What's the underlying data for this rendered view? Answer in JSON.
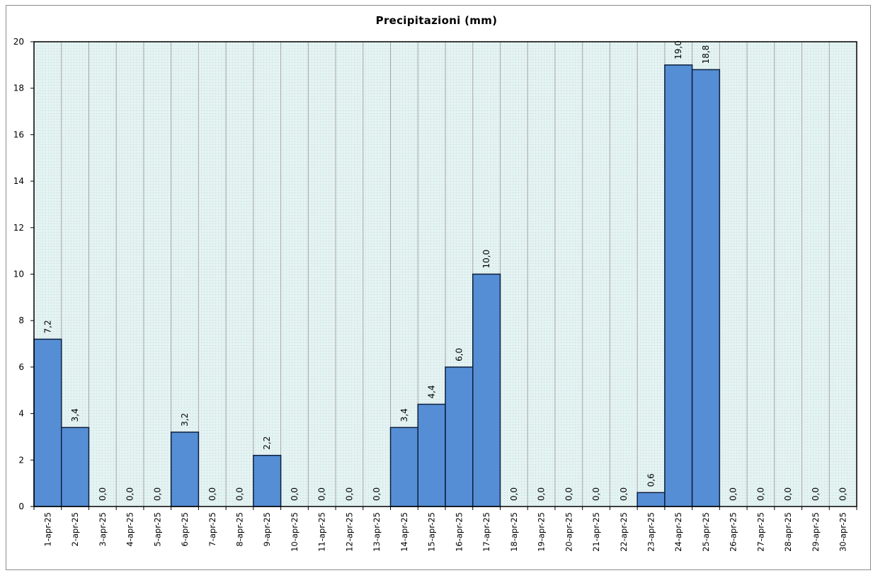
{
  "chart_data": {
    "type": "bar",
    "title": "Precipitazioni  (mm)",
    "xlabel": "",
    "ylabel": "",
    "ylim": [
      0,
      20
    ],
    "yticks": [
      "0",
      "2",
      "4",
      "6",
      "8",
      "10",
      "12",
      "14",
      "16",
      "18",
      "20"
    ],
    "grid": "vertical",
    "legend": "none",
    "categories": [
      "1-apr-25",
      "2-apr-25",
      "3-apr-25",
      "4-apr-25",
      "5-apr-25",
      "6-apr-25",
      "7-apr-25",
      "8-apr-25",
      "9-apr-25",
      "10-apr-25",
      "11-apr-25",
      "12-apr-25",
      "13-apr-25",
      "14-apr-25",
      "15-apr-25",
      "16-apr-25",
      "17-apr-25",
      "18-apr-25",
      "19-apr-25",
      "20-apr-25",
      "21-apr-25",
      "22-apr-25",
      "23-apr-25",
      "24-apr-25",
      "25-apr-25",
      "26-apr-25",
      "27-apr-25",
      "28-apr-25",
      "29-apr-25",
      "30-apr-25"
    ],
    "values": [
      7.2,
      3.4,
      0.0,
      0.0,
      0.0,
      3.2,
      0.0,
      0.0,
      2.2,
      0.0,
      0.0,
      0.0,
      0.0,
      3.4,
      4.4,
      6.0,
      10.0,
      0.0,
      0.0,
      0.0,
      0.0,
      0.0,
      0.6,
      19.0,
      18.8,
      0.0,
      0.0,
      0.0,
      0.0,
      0.0
    ],
    "data_labels": [
      "7,2",
      "3,4",
      "0,0",
      "0,0",
      "0,0",
      "3,2",
      "0,0",
      "0,0",
      "2,2",
      "0,0",
      "0,0",
      "0,0",
      "0,0",
      "3,4",
      "4,4",
      "6,0",
      "10,0",
      "0,0",
      "0,0",
      "0,0",
      "0,0",
      "0,0",
      "0,6",
      "19,0",
      "18,8",
      "0,0",
      "0,0",
      "0,0",
      "0,0",
      "0,0"
    ],
    "colors": {
      "bar_fill": "#558ed5",
      "bar_stroke": "#0d1f3c",
      "plot_background": "#e4f2f2",
      "hatch_dot": "#b8dcdc",
      "gridline": "#a6a6a6",
      "axis": "#000000"
    }
  }
}
